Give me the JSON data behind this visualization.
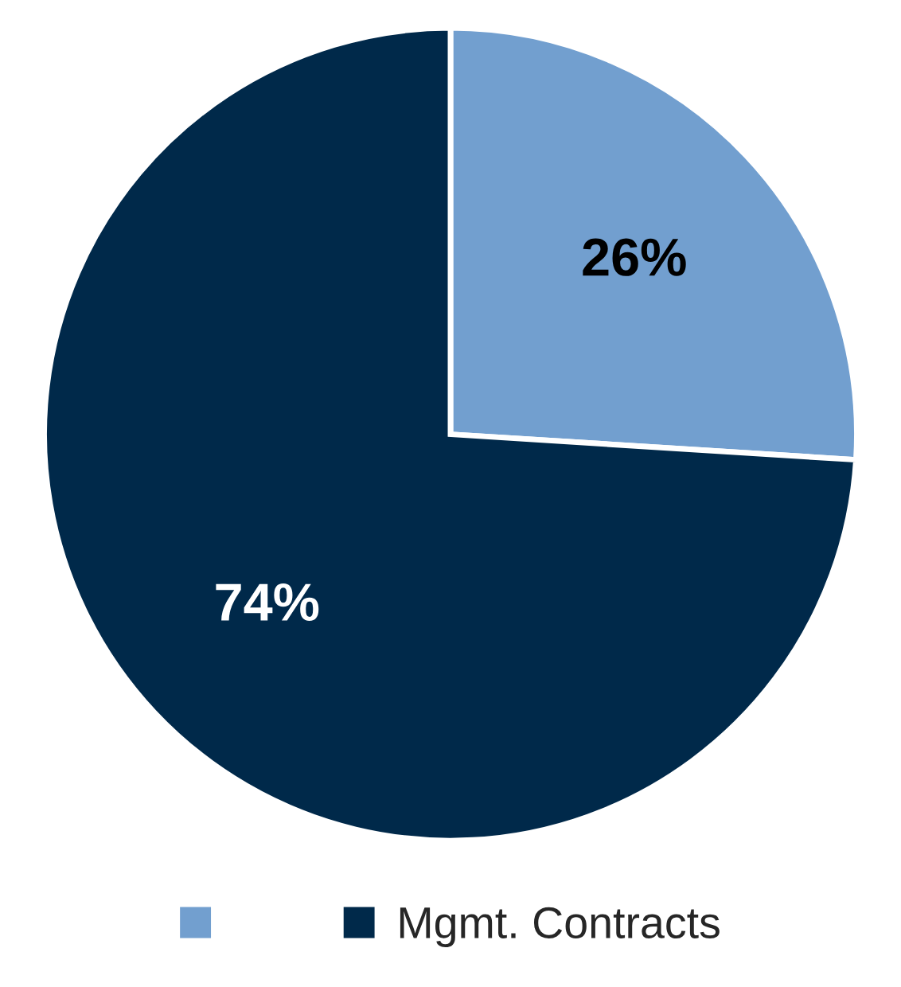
{
  "chart_data": {
    "type": "pie",
    "categories": [
      null,
      "Mgmt. Contracts"
    ],
    "values": [
      26,
      74
    ],
    "colors": [
      "#729fcf",
      "#00294a"
    ],
    "value_labels": [
      "26%",
      "74%"
    ],
    "legend": "bottom"
  }
}
